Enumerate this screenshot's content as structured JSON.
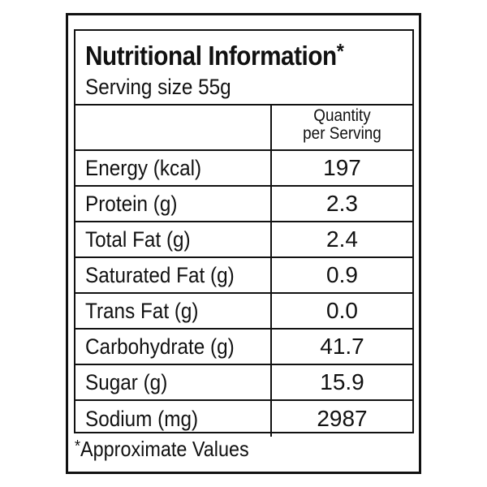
{
  "header": {
    "title": "Nutritional Information",
    "title_marker": "*",
    "serving_size": "Serving size 55g"
  },
  "table": {
    "column_header_line1": "Quantity",
    "column_header_line2": "per Serving",
    "rows": [
      {
        "nutrient": "Energy (kcal)",
        "value": "197"
      },
      {
        "nutrient": "Protein (g)",
        "value": "2.3"
      },
      {
        "nutrient": "Total Fat (g)",
        "value": "2.4"
      },
      {
        "nutrient": "Saturated Fat (g)",
        "value": "0.9"
      },
      {
        "nutrient": "Trans Fat (g)",
        "value": "0.0"
      },
      {
        "nutrient": "Carbohydrate (g)",
        "value": "41.7"
      },
      {
        "nutrient": "Sugar (g)",
        "value": "15.9"
      },
      {
        "nutrient": "Sodium (mg)",
        "value": "2987"
      }
    ]
  },
  "footnote": {
    "marker": "*",
    "text": "Approximate Values"
  }
}
